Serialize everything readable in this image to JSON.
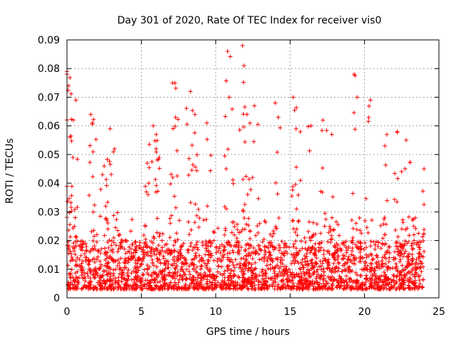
{
  "chart_data": {
    "type": "scatter",
    "title": "Day 301 of 2020, Rate Of TEC Index for receiver vis0",
    "xlabel": "GPS time / hours",
    "ylabel": "ROTI / TECUs",
    "xlim": [
      0,
      25
    ],
    "ylim": [
      0,
      0.09
    ],
    "x_ticks": [
      0,
      5,
      10,
      15,
      20,
      25
    ],
    "x_tick_labels": [
      "0",
      "5",
      "10",
      "15",
      "20",
      "25"
    ],
    "y_ticks": [
      0,
      0.01,
      0.02,
      0.03,
      0.04,
      0.05,
      0.06,
      0.07,
      0.08,
      0.09
    ],
    "y_tick_labels": [
      "0",
      "0.01",
      "0.02",
      "0.03",
      "0.04",
      "0.05",
      "0.06",
      "0.07",
      "0.08",
      "0.09"
    ],
    "grid": true,
    "marker": "+",
    "color": "#ff0000",
    "series": [
      {
        "name": "vis0",
        "data_extent_hours": [
          0,
          24
        ],
        "bulk_value_range": [
          0.003,
          0.02
        ],
        "peaks": [
          {
            "x": 0.0,
            "y": 0.079
          },
          {
            "x": 0.1,
            "y": 0.074
          },
          {
            "x": 0.4,
            "y": 0.049
          },
          {
            "x": 0.6,
            "y": 0.069
          },
          {
            "x": 1.6,
            "y": 0.064
          },
          {
            "x": 1.7,
            "y": 0.061
          },
          {
            "x": 2.5,
            "y": 0.046
          },
          {
            "x": 2.9,
            "y": 0.059
          },
          {
            "x": 3.2,
            "y": 0.052
          },
          {
            "x": 5.4,
            "y": 0.047
          },
          {
            "x": 5.8,
            "y": 0.06
          },
          {
            "x": 6.0,
            "y": 0.057
          },
          {
            "x": 7.1,
            "y": 0.075
          },
          {
            "x": 7.3,
            "y": 0.063
          },
          {
            "x": 8.3,
            "y": 0.072
          },
          {
            "x": 8.6,
            "y": 0.064
          },
          {
            "x": 9.4,
            "y": 0.061
          },
          {
            "x": 10.8,
            "y": 0.086
          },
          {
            "x": 10.9,
            "y": 0.07
          },
          {
            "x": 11.8,
            "y": 0.088
          },
          {
            "x": 11.9,
            "y": 0.081
          },
          {
            "x": 12.1,
            "y": 0.064
          },
          {
            "x": 12.6,
            "y": 0.067
          },
          {
            "x": 14.0,
            "y": 0.068
          },
          {
            "x": 14.2,
            "y": 0.063
          },
          {
            "x": 15.2,
            "y": 0.07
          },
          {
            "x": 15.4,
            "y": 0.059
          },
          {
            "x": 16.4,
            "y": 0.06
          },
          {
            "x": 17.2,
            "y": 0.062
          },
          {
            "x": 17.8,
            "y": 0.057
          },
          {
            "x": 19.3,
            "y": 0.078
          },
          {
            "x": 19.5,
            "y": 0.07
          },
          {
            "x": 20.4,
            "y": 0.069
          },
          {
            "x": 21.5,
            "y": 0.057
          },
          {
            "x": 22.2,
            "y": 0.058
          },
          {
            "x": 22.8,
            "y": 0.055
          },
          {
            "x": 24.0,
            "y": 0.045
          }
        ]
      }
    ]
  }
}
